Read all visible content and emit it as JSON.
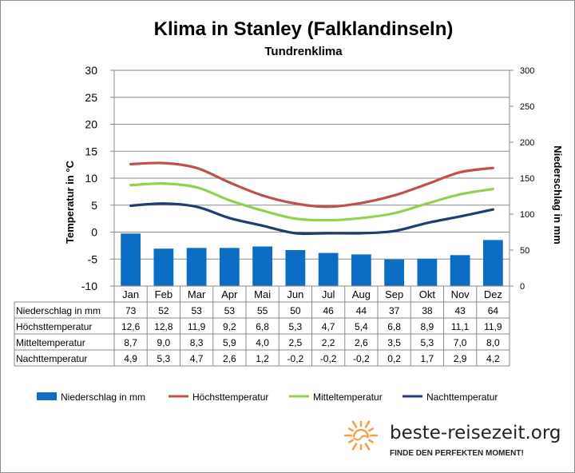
{
  "chart_data": {
    "type": "bar+line",
    "title": "Klima in Stanley (Falklandinseln)",
    "subtitle": "Tundrenklima",
    "ylabel_left": "Temperatur in °C",
    "ylabel_right": "Niederschlag in mm",
    "ylim_left": [
      -10,
      30
    ],
    "yticks_left": [
      "30",
      "25",
      "20",
      "15",
      "10",
      "5",
      "0",
      "-5",
      "-10"
    ],
    "ylim_right": [
      0,
      300
    ],
    "yticks_right": [
      "300",
      "250",
      "200",
      "150",
      "100",
      "50",
      "0"
    ],
    "grid": true,
    "legend_position": "bottom",
    "categories": [
      "Jan",
      "Feb",
      "Mar",
      "Apr",
      "Mai",
      "Jun",
      "Jul",
      "Aug",
      "Sep",
      "Okt",
      "Nov",
      "Dez"
    ],
    "series": [
      {
        "name": "Niederschlag in mm",
        "kind": "bar",
        "axis": "right",
        "color": "#0b6dc3",
        "values": [
          73,
          52,
          53,
          53,
          55,
          50,
          46,
          44,
          37,
          38,
          43,
          64
        ],
        "labels": [
          "73",
          "52",
          "53",
          "53",
          "55",
          "50",
          "46",
          "44",
          "37",
          "38",
          "43",
          "64"
        ]
      },
      {
        "name": "Höchsttemperatur",
        "kind": "line",
        "axis": "left",
        "color": "#c0504d",
        "values": [
          12.6,
          12.8,
          11.9,
          9.2,
          6.8,
          5.3,
          4.7,
          5.4,
          6.8,
          8.9,
          11.1,
          11.9
        ],
        "labels": [
          "12,6",
          "12,8",
          "11,9",
          "9,2",
          "6,8",
          "5,3",
          "4,7",
          "5,4",
          "6,8",
          "8,9",
          "11,1",
          "11,9"
        ]
      },
      {
        "name": "Mitteltemperatur",
        "kind": "line",
        "axis": "left",
        "color": "#92d050",
        "values": [
          8.7,
          9.0,
          8.3,
          5.9,
          4.0,
          2.5,
          2.2,
          2.6,
          3.5,
          5.3,
          7.0,
          8.0
        ],
        "labels": [
          "8,7",
          "9,0",
          "8,3",
          "5,9",
          "4,0",
          "2,5",
          "2,2",
          "2,6",
          "3,5",
          "5,3",
          "7,0",
          "8,0"
        ]
      },
      {
        "name": "Nachttemperatur",
        "kind": "line",
        "axis": "left",
        "color": "#1f3d6e",
        "values": [
          4.9,
          5.3,
          4.7,
          2.6,
          1.2,
          -0.2,
          -0.2,
          -0.2,
          0.2,
          1.7,
          2.9,
          4.2
        ],
        "labels": [
          "4,9",
          "5,3",
          "4,7",
          "2,6",
          "1,2",
          "-0,2",
          "-0,2",
          "-0,2",
          "0,2",
          "1,7",
          "2,9",
          "4,2"
        ]
      }
    ]
  },
  "branding": {
    "site": "beste-reisezeit.org",
    "slogan": "FINDE DEN PERFEKTEN MOMENT!",
    "sun_color": "#f7a04a"
  }
}
